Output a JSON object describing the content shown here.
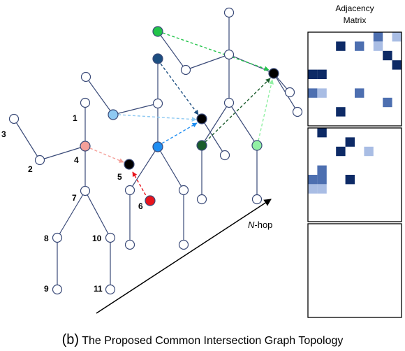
{
  "figure": {
    "matrix_title_line1": "Adjacency",
    "matrix_title_line2": "Matrix",
    "hop_label_n": "N",
    "hop_label_suffix": "-hop",
    "caption_prefix": "(b)",
    "caption_text": " The Proposed Common Intersection Graph Topology"
  },
  "node_labels": {
    "n1": "1",
    "n2": "2",
    "n3": "3",
    "n4": "4",
    "n5": "5",
    "n6": "6",
    "n7": "7",
    "n8": "8",
    "n9": "9",
    "n10": "10",
    "n11": "11"
  },
  "colors": {
    "edge": "#3a4a78",
    "node_default": "#ffffff",
    "node_black": "#000000",
    "node_pink": "#f4a09a",
    "node_red": "#e8141c",
    "node_lightblue": "#8ec9f2",
    "node_blue": "#1f8ef2",
    "node_navy": "#1c4e80",
    "node_bright_green": "#22c44a",
    "node_dark_green": "#1a5c2c",
    "node_light_green": "#92f0a4",
    "arrow_pink": "#f4a09a",
    "arrow_red": "#e8141c",
    "arrow_lightblue": "#8ec9f2",
    "arrow_blue": "#1f8ef2",
    "arrow_navy": "#1c4e80",
    "arrow_green": "#22c44a",
    "arrow_darkgreen": "#1a5c2c",
    "arrow_lightgreen": "#92f0a4",
    "matrix_dark": "#0d2a66",
    "matrix_mid": "#4d6fb0",
    "matrix_light": "#a9bde4",
    "matrix_faint": "#d6e0f3"
  },
  "matrices": [
    {
      "name": "matrix-top",
      "cells": [
        [
          0,
          0,
          0,
          0,
          0,
          0,
          0,
          2,
          0,
          3
        ],
        [
          0,
          0,
          0,
          1,
          0,
          2,
          0,
          3,
          0,
          0
        ],
        [
          0,
          0,
          0,
          0,
          0,
          0,
          0,
          0,
          1,
          0
        ],
        [
          0,
          0,
          0,
          0,
          0,
          0,
          0,
          0,
          0,
          1
        ],
        [
          1,
          1,
          0,
          0,
          0,
          0,
          0,
          0,
          0,
          0
        ],
        [
          0,
          0,
          0,
          0,
          0,
          0,
          0,
          0,
          0,
          0
        ],
        [
          2,
          3,
          0,
          0,
          0,
          2,
          0,
          0,
          0,
          0
        ],
        [
          0,
          0,
          0,
          0,
          0,
          0,
          0,
          0,
          2,
          0
        ],
        [
          0,
          0,
          0,
          1,
          0,
          0,
          0,
          0,
          0,
          0
        ],
        [
          0,
          0,
          0,
          0,
          0,
          0,
          0,
          0,
          0,
          0
        ]
      ]
    },
    {
      "name": "matrix-middle",
      "cells": [
        [
          0,
          1,
          0,
          0,
          0,
          0,
          0,
          0,
          0,
          0
        ],
        [
          0,
          0,
          0,
          0,
          1,
          0,
          0,
          0,
          0,
          0
        ],
        [
          0,
          0,
          0,
          1,
          0,
          0,
          3,
          0,
          0,
          0
        ],
        [
          0,
          0,
          0,
          0,
          0,
          0,
          0,
          0,
          0,
          0
        ],
        [
          0,
          2,
          0,
          0,
          0,
          0,
          0,
          0,
          0,
          0
        ],
        [
          2,
          2,
          0,
          0,
          1,
          0,
          0,
          0,
          0,
          0
        ],
        [
          3,
          3,
          0,
          0,
          0,
          0,
          0,
          0,
          0,
          0
        ],
        [
          0,
          0,
          0,
          0,
          0,
          0,
          0,
          0,
          0,
          0
        ],
        [
          0,
          0,
          0,
          0,
          0,
          0,
          0,
          0,
          0,
          0
        ],
        [
          0,
          0,
          0,
          0,
          0,
          0,
          0,
          0,
          0,
          0
        ]
      ]
    },
    {
      "name": "matrix-bottom",
      "cells": [
        [
          0,
          0,
          0,
          0,
          0,
          0,
          0,
          0,
          0,
          0
        ],
        [
          0,
          0,
          0,
          0,
          0,
          0,
          0,
          0,
          0,
          0
        ],
        [
          0,
          0,
          0,
          0,
          0,
          0,
          0,
          0,
          0,
          0
        ],
        [
          0,
          0,
          0,
          0,
          0,
          0,
          0,
          0,
          0,
          0
        ],
        [
          0,
          0,
          0,
          0,
          0,
          0,
          0,
          0,
          0,
          0
        ],
        [
          0,
          0,
          0,
          0,
          0,
          0,
          0,
          0,
          0,
          0
        ],
        [
          0,
          0,
          0,
          0,
          0,
          0,
          0,
          0,
          0,
          0
        ],
        [
          0,
          0,
          0,
          0,
          0,
          0,
          0,
          0,
          0,
          0
        ],
        [
          0,
          0,
          0,
          0,
          0,
          0,
          0,
          0,
          0,
          0
        ],
        [
          0,
          0,
          0,
          0,
          0,
          0,
          0,
          0,
          0,
          0
        ]
      ]
    }
  ]
}
